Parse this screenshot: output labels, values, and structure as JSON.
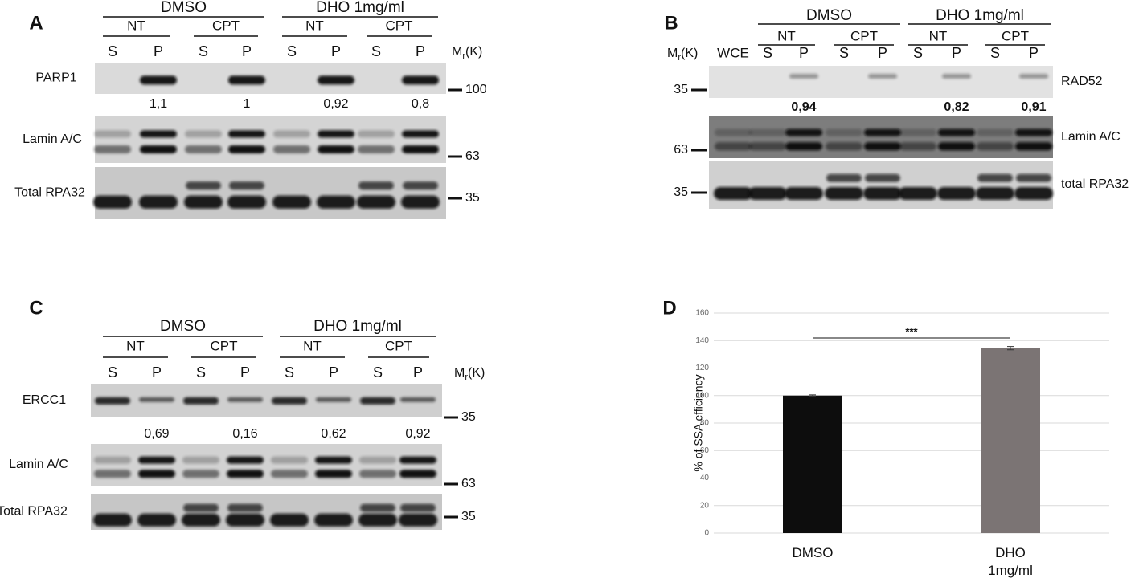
{
  "panels": [
    {
      "label": "A",
      "groups": [
        {
          "title": "DMSO",
          "subgroups": [
            {
              "title": "NT",
              "lanes": [
                "S",
                "P"
              ]
            },
            {
              "title": "CPT",
              "lanes": [
                "S",
                "P"
              ]
            }
          ]
        },
        {
          "title": "DHO 1mg/ml",
          "subgroups": [
            {
              "title": "NT",
              "lanes": [
                "S",
                "P"
              ]
            },
            {
              "title": "CPT",
              "lanes": [
                "S",
                "P"
              ]
            }
          ]
        }
      ],
      "mw_header": {
        "symbol": "M",
        "subscript": "r",
        "unit": "(K)"
      },
      "rows": [
        {
          "name": "PARP1",
          "marker": 100,
          "quantification": [
            "1,1",
            "1",
            "0,92",
            "0,8"
          ]
        },
        {
          "name": "Lamin A/C",
          "marker": 63
        },
        {
          "name": "Total RPA32",
          "marker": 35
        }
      ]
    },
    {
      "label": "B",
      "extra_lane": "WCE",
      "groups": [
        {
          "title": "DMSO",
          "subgroups": [
            {
              "title": "NT",
              "lanes": [
                "S",
                "P"
              ]
            },
            {
              "title": "CPT",
              "lanes": [
                "S",
                "P"
              ]
            }
          ]
        },
        {
          "title": "DHO 1mg/ml",
          "subgroups": [
            {
              "title": "NT",
              "lanes": [
                "S",
                "P"
              ]
            },
            {
              "title": "CPT",
              "lanes": [
                "S",
                "P"
              ]
            }
          ]
        }
      ],
      "mw_header": {
        "symbol": "M",
        "subscript": "r",
        "unit": "(K)"
      },
      "rows": [
        {
          "name": "RAD52",
          "marker": 35,
          "quantification": [
            "0,94",
            null,
            "0,82",
            "0,91"
          ]
        },
        {
          "name": "Lamin A/C",
          "marker": 63
        },
        {
          "name": "total RPA32",
          "marker": 35
        }
      ]
    },
    {
      "label": "C",
      "groups": [
        {
          "title": "DMSO",
          "subgroups": [
            {
              "title": "NT",
              "lanes": [
                "S",
                "P"
              ]
            },
            {
              "title": "CPT",
              "lanes": [
                "S",
                "P"
              ]
            }
          ]
        },
        {
          "title": "DHO 1mg/ml",
          "subgroups": [
            {
              "title": "NT",
              "lanes": [
                "S",
                "P"
              ]
            },
            {
              "title": "CPT",
              "lanes": [
                "S",
                "P"
              ]
            }
          ]
        }
      ],
      "mw_header": {
        "symbol": "M",
        "subscript": "r",
        "unit": "(K)"
      },
      "rows": [
        {
          "name": "ERCC1",
          "marker": 35,
          "quantification": [
            "0,69",
            "0,16",
            "0,62",
            "0,92"
          ]
        },
        {
          "name": "Lamin A/C",
          "marker": 63
        },
        {
          "name": "Total RPA32",
          "marker": 35
        }
      ]
    }
  ],
  "chart_data": {
    "type": "bar",
    "panel_label": "D",
    "y_label": "% of SSA efficiency",
    "categories": [
      "DMSO",
      "DHO 1mg/ml"
    ],
    "values": [
      100,
      134.5
    ],
    "errors": [
      0.5,
      1.2
    ],
    "colors": [
      "#0d0d0d",
      "#7b7474"
    ],
    "ylim": [
      0,
      160
    ],
    "yticks": [
      0,
      20,
      40,
      60,
      80,
      100,
      120,
      140,
      160
    ],
    "grid": true,
    "significance": "***"
  }
}
